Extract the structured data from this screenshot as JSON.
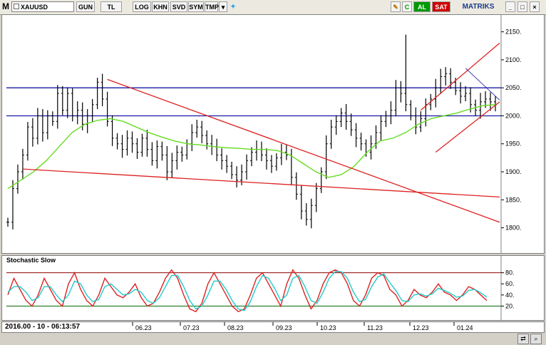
{
  "toolbar": {
    "logo": "M",
    "symbol": "XAUUSD",
    "buttons": [
      "GUN",
      "TL",
      "LOG",
      "KHN",
      "SVD",
      "SYM",
      "TMP"
    ],
    "right_buttons": [
      "C",
      "AL",
      "SAT"
    ],
    "brand": "MATRIKS",
    "colors": {
      "al": "#009900",
      "sat": "#cc0000"
    }
  },
  "chart_data": [
    {
      "type": "ohlc-bar",
      "symbol": "XAUUSD",
      "ylim": [
        1760,
        2175
      ],
      "yticks": [
        "2150.",
        "2100.",
        "2050.",
        "2000.",
        "1950.",
        "1900.",
        "1850.",
        "1800."
      ],
      "x_labels": [
        "06.23",
        "07.23",
        "08.23",
        "09.23",
        "10.23",
        "11.23",
        "12.23",
        "01.24"
      ],
      "horizontal_levels": [
        2050,
        2000
      ],
      "price_path": [
        1810,
        1870,
        1900,
        1930,
        1980,
        1960,
        2000,
        1970,
        2000,
        1990,
        2040,
        2010,
        2040,
        2000,
        2010,
        1985,
        2000,
        2020,
        2060,
        2030,
        1990,
        1960,
        1950,
        1940,
        1960,
        1950,
        1935,
        1960,
        1940,
        1920,
        1945,
        1930,
        1900,
        1920,
        1935,
        1930,
        1950,
        1970,
        1980,
        1965,
        1950,
        1945,
        1930,
        1920,
        1910,
        1895,
        1885,
        1900,
        1920,
        1935,
        1940,
        1930,
        1920,
        1910,
        1925,
        1935,
        1930,
        1890,
        1860,
        1830,
        1815,
        1840,
        1870,
        1900,
        1950,
        1980,
        1990,
        2005,
        1990,
        1975,
        1960,
        1950,
        1935,
        1950,
        1970,
        1990,
        2000,
        2010,
        2050,
        2040,
        2020,
        2000,
        1980,
        1995,
        2020,
        2030,
        2050,
        2070,
        2075,
        2060,
        2045,
        2035,
        2040,
        2020,
        2010,
        2025,
        2030,
        2025,
        2020
      ],
      "series": [
        {
          "name": "moving-average",
          "color": "#66dd22",
          "values": [
            1870,
            1885,
            1900,
            1920,
            1945,
            1970,
            1985,
            1992,
            1995,
            1990,
            1980,
            1970,
            1962,
            1955,
            1950,
            1948,
            1945,
            1943,
            1942,
            1940,
            1940,
            1938,
            1930,
            1915,
            1900,
            1890,
            1895,
            1910,
            1935,
            1955,
            1960,
            1970,
            1985,
            1995,
            2000,
            2005,
            2012,
            2018,
            2020
          ]
        },
        {
          "name": "trend-channel-1",
          "color": "#dd2222",
          "values": [
            2065,
            1810
          ]
        },
        {
          "name": "trend-channel-2",
          "color": "#dd2222",
          "values": [
            1905,
            1855
          ]
        },
        {
          "name": "trend-channel-3",
          "color": "#dd2222",
          "values": [
            2010,
            2130
          ]
        },
        {
          "name": "trend-channel-4",
          "color": "#dd2222",
          "values": [
            1935,
            2025
          ]
        }
      ]
    },
    {
      "type": "line",
      "title": "Stochastic Slow",
      "ylim": [
        0,
        100
      ],
      "yticks": [
        "80.",
        "60.",
        "40.",
        "20."
      ],
      "levels": [
        80,
        20
      ],
      "series": [
        {
          "name": "%K",
          "color": "#dd2222",
          "values": [
            40,
            70,
            50,
            30,
            20,
            40,
            70,
            50,
            30,
            20,
            60,
            80,
            50,
            30,
            20,
            40,
            70,
            55,
            40,
            35,
            45,
            60,
            35,
            20,
            25,
            45,
            70,
            85,
            70,
            40,
            15,
            10,
            25,
            60,
            80,
            60,
            40,
            20,
            10,
            15,
            40,
            70,
            80,
            60,
            40,
            20,
            60,
            85,
            70,
            40,
            15,
            30,
            60,
            80,
            85,
            80,
            60,
            30,
            20,
            40,
            70,
            80,
            75,
            50,
            40,
            20,
            30,
            50,
            40,
            35,
            45,
            60,
            45,
            40,
            30,
            40,
            55,
            50,
            40,
            30
          ]
        },
        {
          "name": "%D",
          "color": "#22cccc",
          "values": [
            45,
            55,
            55,
            45,
            30,
            35,
            55,
            55,
            40,
            28,
            40,
            65,
            60,
            40,
            28,
            32,
            55,
            60,
            50,
            40,
            42,
            50,
            45,
            30,
            25,
            35,
            55,
            75,
            75,
            55,
            30,
            15,
            20,
            40,
            65,
            65,
            50,
            30,
            15,
            12,
            28,
            55,
            75,
            70,
            52,
            30,
            40,
            70,
            75,
            55,
            30,
            25,
            45,
            70,
            82,
            82,
            70,
            45,
            28,
            32,
            55,
            72,
            78,
            62,
            48,
            30,
            28,
            40,
            42,
            38,
            42,
            52,
            48,
            43,
            36,
            38,
            48,
            50,
            44,
            36
          ]
        }
      ]
    }
  ],
  "date_time": "2016.00 - 10 - 06:13:57"
}
